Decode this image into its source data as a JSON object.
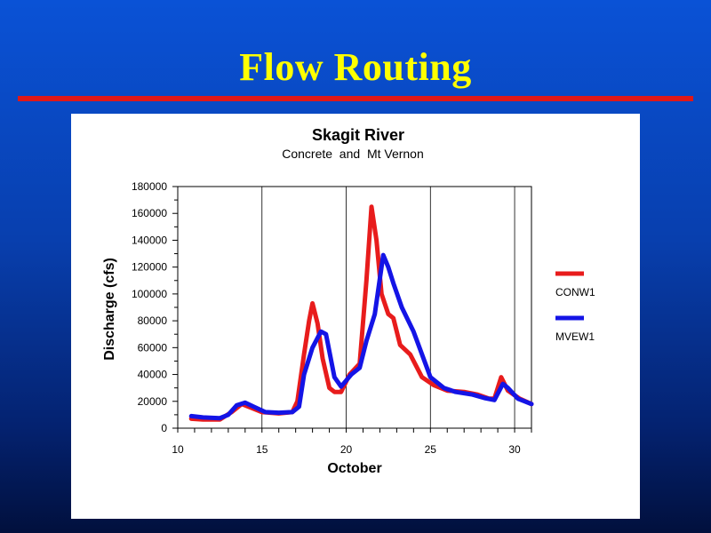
{
  "slide": {
    "title": "Flow Routing"
  },
  "colors": {
    "title": "#ffff00",
    "rule": "#e01818",
    "conw1": "#e81c1c",
    "mvew1": "#1414e6"
  },
  "chart_data": {
    "type": "line",
    "title": "Skagit River",
    "subtitle": "Concrete  and  Mt Vernon",
    "xlabel": "October",
    "ylabel": "Discharge (cfs)",
    "xlim": [
      10,
      31
    ],
    "ylim": [
      0,
      180000
    ],
    "xticks": [
      10,
      15,
      20,
      25,
      30
    ],
    "yticks": [
      0,
      20000,
      40000,
      60000,
      80000,
      100000,
      120000,
      140000,
      160000,
      180000
    ],
    "grid": true,
    "legend_position": "right",
    "series": [
      {
        "name": "CONW1",
        "color": "#e81c1c",
        "points": [
          [
            10.8,
            7000
          ],
          [
            11.5,
            6500
          ],
          [
            12.5,
            6500
          ],
          [
            13.2,
            12000
          ],
          [
            13.8,
            18000
          ],
          [
            14.3,
            15500
          ],
          [
            15.0,
            12000
          ],
          [
            16.0,
            11000
          ],
          [
            16.8,
            12000
          ],
          [
            17.1,
            20000
          ],
          [
            17.5,
            55000
          ],
          [
            17.8,
            80000
          ],
          [
            18.0,
            93000
          ],
          [
            18.3,
            78000
          ],
          [
            18.6,
            52000
          ],
          [
            19.0,
            30000
          ],
          [
            19.3,
            27000
          ],
          [
            19.7,
            27000
          ],
          [
            20.2,
            40000
          ],
          [
            20.8,
            48000
          ],
          [
            21.2,
            110000
          ],
          [
            21.5,
            165000
          ],
          [
            21.8,
            140000
          ],
          [
            22.1,
            100000
          ],
          [
            22.5,
            85000
          ],
          [
            22.8,
            82000
          ],
          [
            23.2,
            62000
          ],
          [
            23.8,
            55000
          ],
          [
            24.5,
            38000
          ],
          [
            25.2,
            32000
          ],
          [
            26.0,
            28000
          ],
          [
            27.0,
            27000
          ],
          [
            27.8,
            25000
          ],
          [
            28.5,
            22000
          ],
          [
            28.8,
            22000
          ],
          [
            29.2,
            38000
          ],
          [
            29.6,
            28000
          ],
          [
            30.3,
            22000
          ],
          [
            31.0,
            18000
          ]
        ]
      },
      {
        "name": "MVEW1",
        "color": "#1414e6",
        "points": [
          [
            10.8,
            9000
          ],
          [
            11.5,
            8000
          ],
          [
            12.5,
            7500
          ],
          [
            13.0,
            10000
          ],
          [
            13.5,
            17000
          ],
          [
            14.0,
            19000
          ],
          [
            14.5,
            16000
          ],
          [
            15.2,
            12000
          ],
          [
            16.0,
            11500
          ],
          [
            16.8,
            12000
          ],
          [
            17.2,
            16000
          ],
          [
            17.5,
            40000
          ],
          [
            18.0,
            60000
          ],
          [
            18.5,
            72000
          ],
          [
            18.8,
            70000
          ],
          [
            19.3,
            38000
          ],
          [
            19.7,
            31000
          ],
          [
            20.3,
            40000
          ],
          [
            20.8,
            45000
          ],
          [
            21.2,
            65000
          ],
          [
            21.7,
            85000
          ],
          [
            22.2,
            129000
          ],
          [
            22.5,
            120000
          ],
          [
            22.8,
            108000
          ],
          [
            23.3,
            90000
          ],
          [
            24.0,
            72000
          ],
          [
            24.5,
            55000
          ],
          [
            25.0,
            38000
          ],
          [
            25.8,
            30000
          ],
          [
            26.5,
            27000
          ],
          [
            27.5,
            25000
          ],
          [
            28.2,
            22500
          ],
          [
            28.8,
            21000
          ],
          [
            29.3,
            33000
          ],
          [
            29.6,
            30000
          ],
          [
            30.2,
            22000
          ],
          [
            31.0,
            18000
          ]
        ]
      }
    ]
  }
}
